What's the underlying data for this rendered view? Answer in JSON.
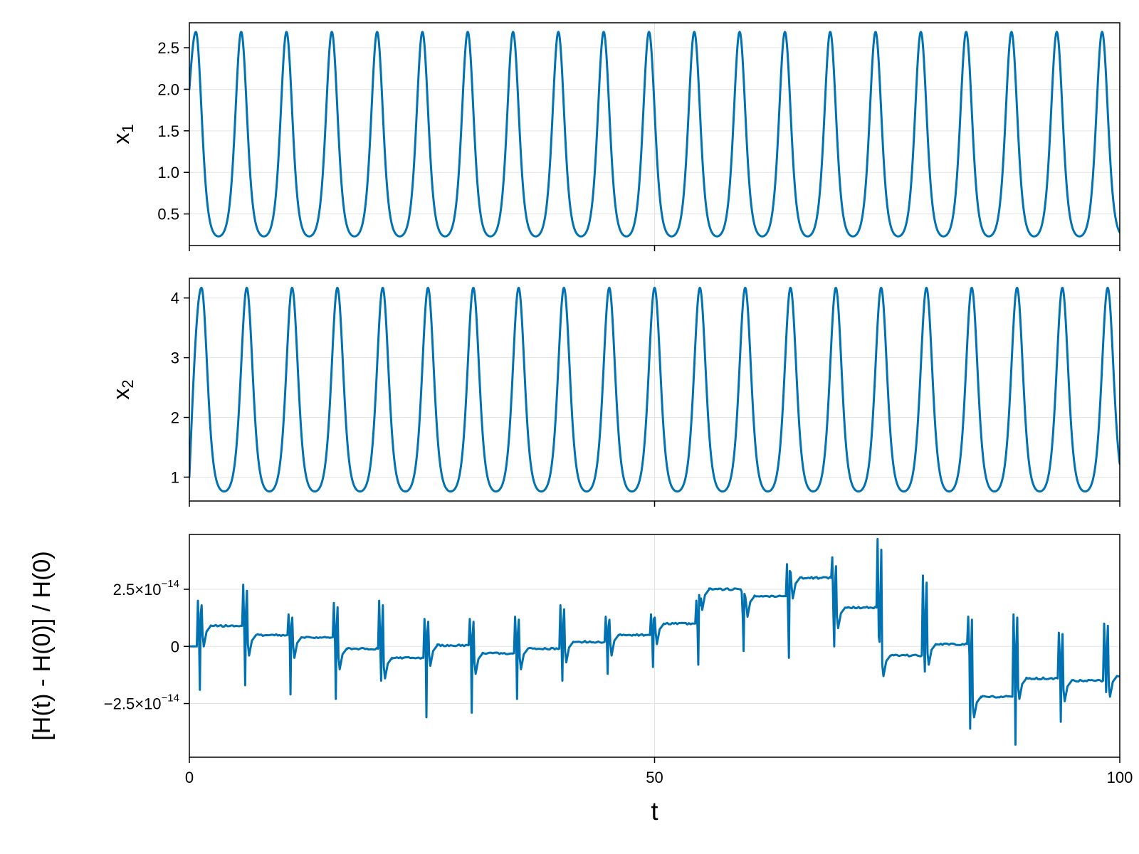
{
  "colors": {
    "series": "#0072b2",
    "grid": "#e3e3e3",
    "frame": "#000000"
  },
  "chart_data": [
    {
      "type": "line",
      "ylabel_base": "x",
      "ylabel_sub": "1",
      "xlim": [
        0,
        100
      ],
      "ylim": [
        0.12,
        2.8
      ],
      "yticks": [
        0.5,
        1.0,
        1.5,
        2.0,
        2.5
      ],
      "ytick_labels": [
        "0.5",
        "1.0",
        "1.5",
        "2.0",
        "2.5"
      ],
      "xticks": [
        0,
        50,
        100
      ],
      "show_xtick_labels": false,
      "grid": true,
      "series": [
        {
          "generator": "oscillation",
          "period": 4.87,
          "ymin": 0.23,
          "ymax": 2.69,
          "y0": 2.0,
          "t_first_peak": 0.7,
          "t_end": 100,
          "y_end": 0.36
        }
      ]
    },
    {
      "type": "line",
      "ylabel_base": "x",
      "ylabel_sub": "2",
      "xlim": [
        0,
        100
      ],
      "ylim": [
        0.6,
        4.33
      ],
      "yticks": [
        1,
        2,
        3,
        4
      ],
      "ytick_labels": [
        "1",
        "2",
        "3",
        "4"
      ],
      "xticks": [
        0,
        50,
        100
      ],
      "show_xtick_labels": false,
      "grid": true,
      "series": [
        {
          "generator": "oscillation",
          "period": 4.87,
          "ymin": 0.76,
          "ymax": 4.17,
          "y0": 1.0,
          "t_first_peak": 1.3,
          "t_end": 100,
          "y_end": 1.1
        }
      ]
    },
    {
      "type": "line",
      "ylabel": "[H(t) - H(0)] / H(0)",
      "xlabel": "t",
      "xlim": [
        0,
        100
      ],
      "ylim": [
        -4.85e-14,
        4.9e-14
      ],
      "yticks": [
        -2.5e-14,
        0,
        2.5e-14
      ],
      "ytick_labels": [
        {
          "mantissa": "−2.5×10",
          "exp": "−14"
        },
        {
          "mantissa": "0",
          "exp": ""
        },
        {
          "mantissa": "2.5×10",
          "exp": "−14"
        }
      ],
      "xticks": [
        0,
        50,
        100
      ],
      "xtick_labels": [
        "0",
        "50",
        "100"
      ],
      "show_xtick_labels": true,
      "grid": true,
      "series": [
        {
          "generator": "energy-error",
          "period": 4.87,
          "t_first_event": 0.8,
          "step_levels": [
            9e-15,
            5e-15,
            4e-15,
            -1e-15,
            -5e-15,
            5e-16,
            -3e-15,
            -1e-15,
            2e-15,
            5e-15,
            1e-14,
            2.5e-14,
            2.2e-14,
            3e-14,
            1.7e-14,
            -4e-15,
            1e-15,
            -2.2e-14,
            -1.4e-14,
            -1.5e-14,
            -1.3e-14
          ],
          "spike_up": [
            2e-14,
            2.7e-14,
            1.4e-14,
            1.9e-14,
            2e-14,
            1.2e-14,
            1.2e-14,
            1.3e-14,
            1.8e-14,
            1.3e-14,
            1.4e-14,
            2e-14,
            2.4e-14,
            3.6e-14,
            3.9e-14,
            4.7e-14,
            3.1e-14,
            1.3e-14,
            1.4e-14,
            6e-15,
            1e-14
          ],
          "spike_down": [
            -1.9e-14,
            -1.7e-14,
            -2.1e-14,
            -2.3e-14,
            -1.5e-14,
            -3.1e-14,
            -2.9e-14,
            -2.3e-14,
            -1.5e-14,
            -1.2e-14,
            -9e-15,
            -8e-15,
            -2e-15,
            -5e-15,
            -0.0,
            2e-15,
            -1.1e-14,
            -3.6e-14,
            -4.3e-14,
            -3.3e-14,
            -2e-14
          ]
        }
      ]
    }
  ]
}
